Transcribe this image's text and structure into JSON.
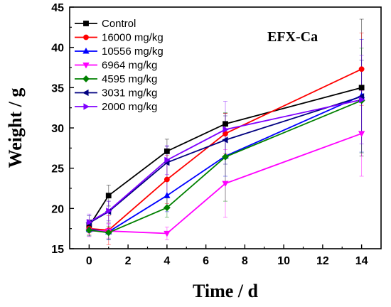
{
  "chart_data": {
    "type": "line",
    "xlabel": "Time / d",
    "ylabel": "Weight / g",
    "annotation": "EFX-Ca",
    "xlim": [
      -1,
      15
    ],
    "ylim": [
      15,
      45
    ],
    "xticks": [
      0,
      2,
      4,
      6,
      8,
      10,
      12,
      14
    ],
    "yticks": [
      15,
      20,
      25,
      30,
      35,
      40,
      45
    ],
    "grid": false,
    "legend_position": "top-left",
    "x": [
      0,
      1,
      4,
      7,
      14
    ],
    "series": [
      {
        "name": "Control",
        "color": "#000000",
        "marker": "square",
        "values": [
          17.8,
          21.6,
          27.1,
          30.5,
          35.0
        ],
        "errors": [
          0.8,
          1.3,
          1.5,
          1.3,
          8.5
        ]
      },
      {
        "name": "16000 mg/kg",
        "color": "#ff0000",
        "marker": "circle",
        "values": [
          17.5,
          17.3,
          23.6,
          29.3,
          37.3
        ],
        "errors": [
          0.7,
          1.8,
          3.0,
          2.5,
          4.5
        ]
      },
      {
        "name": "10556 mg/kg",
        "color": "#0000ff",
        "marker": "triangle-up",
        "values": [
          17.4,
          17.1,
          21.6,
          26.5,
          34.0
        ],
        "errors": [
          0.8,
          1.0,
          2.0,
          2.5,
          7.0
        ]
      },
      {
        "name": "6964 mg/kg",
        "color": "#ff00ff",
        "marker": "triangle-down",
        "values": [
          17.2,
          17.2,
          16.9,
          23.1,
          29.3
        ],
        "errors": [
          0.7,
          0.9,
          0.8,
          4.2,
          5.3
        ]
      },
      {
        "name": "4595 mg/kg",
        "color": "#008000",
        "marker": "diamond",
        "values": [
          17.3,
          17.0,
          20.1,
          26.4,
          33.4
        ],
        "errors": [
          0.7,
          0.8,
          1.2,
          5.5,
          6.5
        ]
      },
      {
        "name": "3031 mg/kg",
        "color": "#000080",
        "marker": "triangle-left",
        "values": [
          18.2,
          19.6,
          25.7,
          28.5,
          33.9
        ],
        "errors": [
          0.9,
          1.3,
          2.0,
          3.0,
          4.5
        ]
      },
      {
        "name": "2000 mg/kg",
        "color": "#8000ff",
        "marker": "triangle-right",
        "values": [
          18.3,
          19.7,
          26.0,
          29.8,
          33.5
        ],
        "errors": [
          1.0,
          1.2,
          1.8,
          3.5,
          5.5
        ]
      }
    ]
  }
}
